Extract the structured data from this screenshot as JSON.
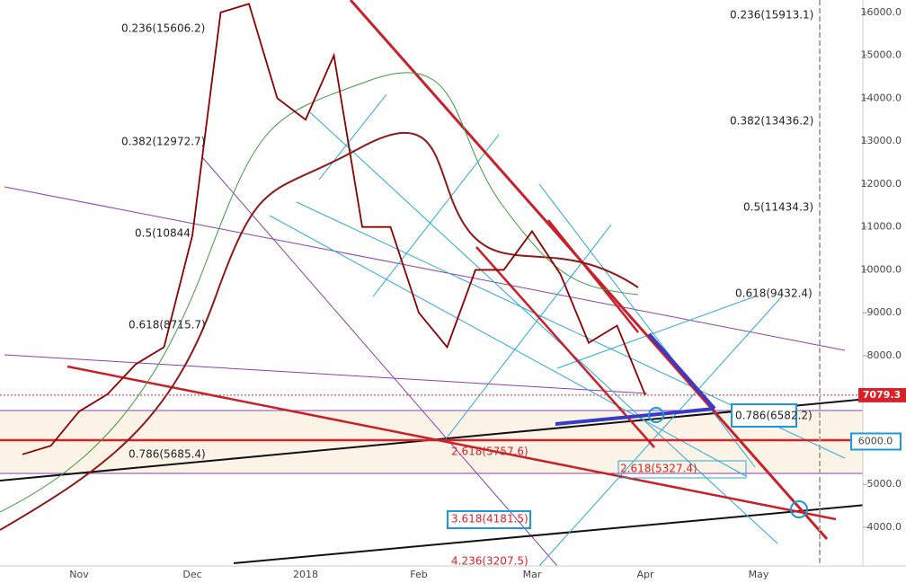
{
  "chart_data": {
    "type": "line",
    "color": "#8b0000",
    "categories": [
      null,
      null,
      "Nov",
      null,
      null,
      null,
      "Dec",
      null,
      null,
      null,
      "2018",
      null,
      null,
      null,
      "Feb",
      null,
      null,
      null,
      "Mar",
      null,
      null,
      null,
      "Apr",
      null,
      null,
      null,
      "May",
      null,
      null,
      null
    ],
    "values": [
      5700,
      5900,
      6700,
      7100,
      7800,
      8200,
      10800,
      16000,
      16200,
      14000,
      13500,
      15000,
      11000,
      11000,
      9000,
      8200,
      10000,
      10000,
      10900,
      9900,
      8300,
      8700,
      7079.3,
      null,
      null,
      null,
      null,
      null,
      null,
      null
    ],
    "ylim": [
      3100,
      16290
    ],
    "yticks": [
      {
        "value": 4000,
        "label": "4000.0"
      },
      {
        "value": 5000,
        "label": "5000.0"
      },
      {
        "value": 6000,
        "label": "6000.0"
      },
      {
        "value": 7000,
        "label": "7000.0"
      },
      {
        "value": 8000,
        "label": "8000.0"
      },
      {
        "value": 9000,
        "label": "9000.0"
      },
      {
        "value": 10000,
        "label": "10000.0"
      },
      {
        "value": 11000,
        "label": "11000.0"
      },
      {
        "value": 12000,
        "label": "12000.0"
      },
      {
        "value": 13000,
        "label": "13000.0"
      },
      {
        "value": 14000,
        "label": "14000.0"
      },
      {
        "value": 15000,
        "label": "15000.0"
      },
      {
        "value": 16000,
        "label": "16000.0"
      }
    ],
    "grid": false,
    "price_tag": {
      "value": 7079.3,
      "label": "7079.3"
    },
    "level_tag": {
      "value": 6000,
      "label": "6000.0"
    },
    "annotations": [
      "0.236(15606.2)",
      "0.382(12972.7)",
      "0.5(10844",
      "0.618(8715.7)",
      "0.786(5685.4)",
      "0.236(15913.1)",
      "0.382(13436.2)",
      "0.5(11434.3)",
      "0.618(9432.4)",
      "0.786(6582.2)",
      "2.618(5757.6)",
      "2.618(5327.4)",
      "3.618(4181.5)",
      "4.236(3207.5)"
    ]
  }
}
